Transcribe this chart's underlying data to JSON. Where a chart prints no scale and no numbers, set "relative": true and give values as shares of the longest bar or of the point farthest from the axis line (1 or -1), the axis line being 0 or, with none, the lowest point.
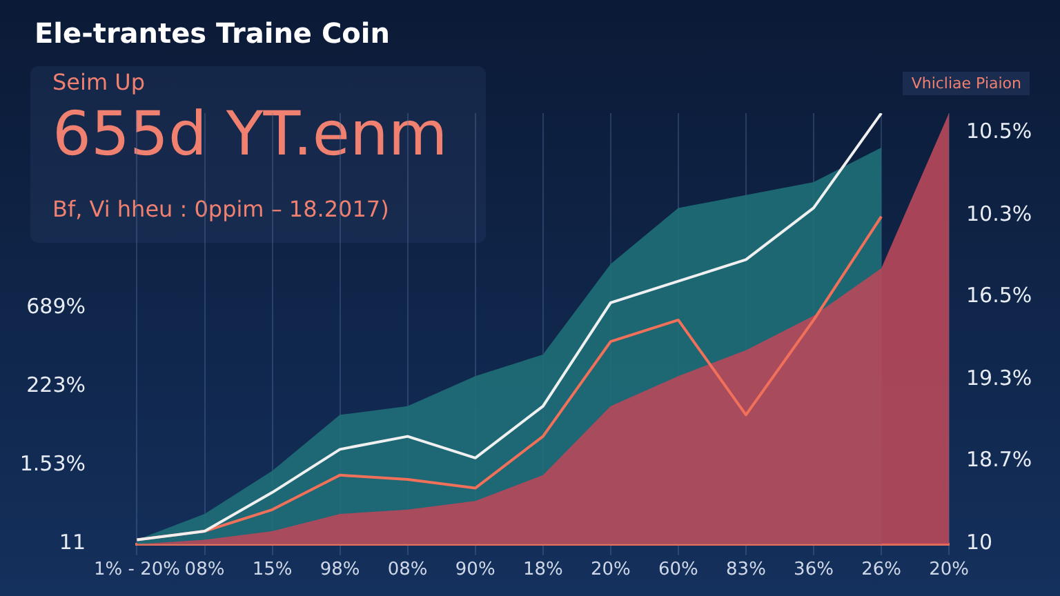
{
  "chart_data": {
    "type": "line",
    "title": "Ele-trantes Traine Coin",
    "subtitle": "Seim Up",
    "annotations": [
      "655d YT.enm",
      "Bf, Vi hheu : 0ppim – 18.2017)",
      "Vhicliae Piaion",
      "689%",
      "223%",
      "1.53%",
      "11",
      "10.5%",
      "10.3%",
      "16.5%",
      "19.3%",
      "18.7%",
      "10"
    ],
    "categories": [
      "1% - 20%",
      "08%",
      "15%",
      "98%",
      "08%",
      "90%",
      "18%",
      "20%",
      "60%",
      "83%",
      "36%",
      "26%",
      "20%"
    ],
    "relative": true,
    "grid": "x",
    "legend": false,
    "marker": "none",
    "line_style": "solid",
    "series": [
      {
        "type": "area",
        "color": "#1f6f78",
        "values": [
          0.01,
          0.07,
          0.17,
          0.3,
          0.32,
          0.39,
          0.44,
          0.65,
          0.78,
          0.81,
          0.84,
          0.92,
          null
        ]
      },
      {
        "type": "area",
        "color": "#b8485a",
        "values": [
          0,
          0.01,
          0.03,
          0.07,
          0.08,
          0.1,
          0.16,
          0.32,
          0.39,
          0.45,
          0.53,
          0.64,
          1
        ]
      },
      {
        "type": "line",
        "color": "#f0f0f0",
        "values": [
          0.01,
          0.03,
          0.12,
          0.22,
          0.25,
          0.2,
          0.32,
          0.56,
          0.61,
          0.66,
          0.78,
          1,
          null
        ]
      },
      {
        "type": "line",
        "color": "#f0705a",
        "values": [
          0.01,
          0.03,
          0.08,
          0.16,
          0.15,
          0.13,
          0.25,
          0.47,
          0.52,
          0.3,
          0.52,
          0.76,
          null
        ]
      }
    ]
  }
}
